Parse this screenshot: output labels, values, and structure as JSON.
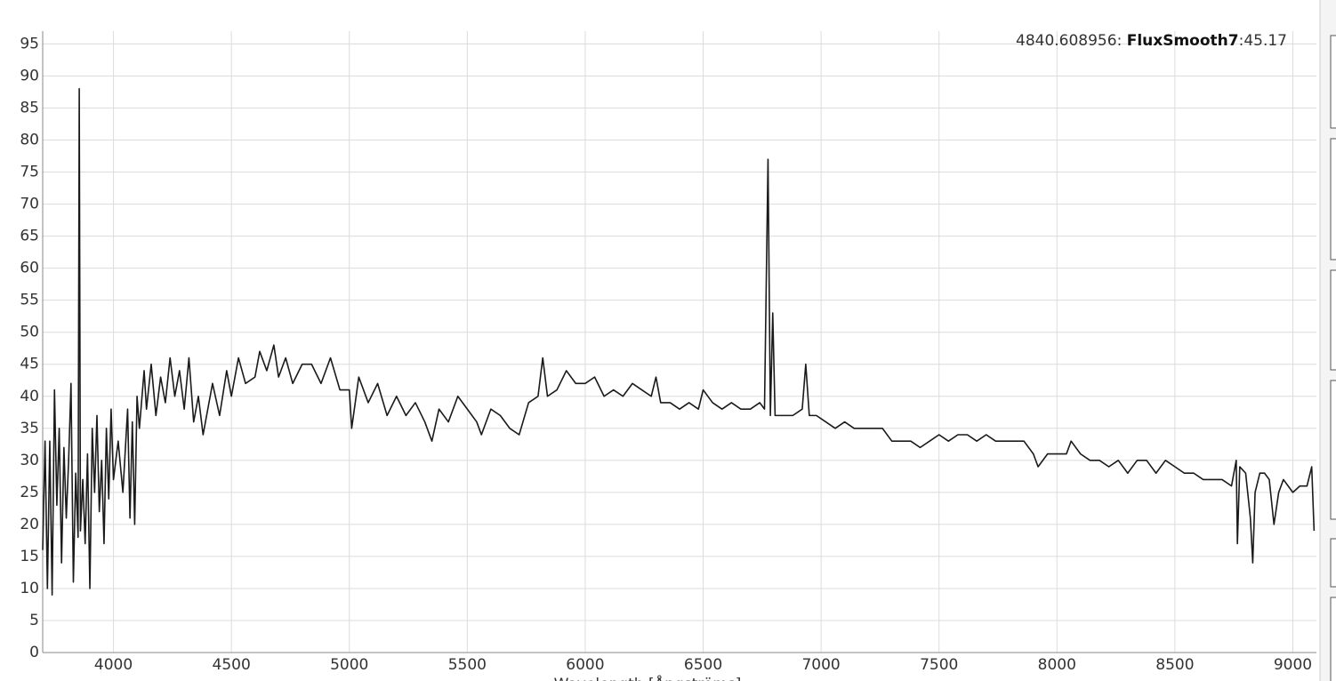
{
  "chart_data": {
    "type": "line",
    "annotation": {
      "x_text": "4840.608956: ",
      "series_name": "FluxSmooth7",
      "value_text": ":45.17"
    },
    "x_label": "Wavelength [Ångströms]",
    "color": "#1a1a1a",
    "grid": true,
    "xlim": [
      3700,
      9100
    ],
    "ylim": [
      0,
      97
    ],
    "xticks": [
      4000,
      4500,
      5000,
      5500,
      6000,
      6500,
      7000,
      7500,
      8000,
      8500,
      9000
    ],
    "yticks": [
      0,
      5,
      10,
      15,
      20,
      25,
      30,
      35,
      40,
      45,
      50,
      55,
      60,
      65,
      70,
      75,
      80,
      85,
      90,
      95
    ],
    "x": [
      3700,
      3710,
      3720,
      3730,
      3740,
      3750,
      3760,
      3770,
      3780,
      3790,
      3800,
      3810,
      3820,
      3830,
      3840,
      3850,
      3855,
      3860,
      3870,
      3880,
      3890,
      3900,
      3910,
      3920,
      3930,
      3940,
      3950,
      3960,
      3970,
      3980,
      3990,
      4000,
      4020,
      4040,
      4060,
      4070,
      4080,
      4090,
      4100,
      4110,
      4130,
      4140,
      4160,
      4180,
      4200,
      4220,
      4240,
      4260,
      4280,
      4300,
      4320,
      4340,
      4360,
      4380,
      4400,
      4420,
      4450,
      4480,
      4500,
      4530,
      4560,
      4600,
      4620,
      4650,
      4680,
      4700,
      4730,
      4760,
      4800,
      4840,
      4880,
      4920,
      4960,
      5000,
      5010,
      5040,
      5080,
      5120,
      5160,
      5200,
      5240,
      5280,
      5320,
      5350,
      5380,
      5420,
      5460,
      5500,
      5540,
      5560,
      5600,
      5640,
      5680,
      5720,
      5760,
      5800,
      5820,
      5840,
      5880,
      5920,
      5960,
      6000,
      6040,
      6080,
      6120,
      6160,
      6200,
      6240,
      6280,
      6300,
      6320,
      6360,
      6400,
      6440,
      6480,
      6500,
      6540,
      6580,
      6620,
      6660,
      6700,
      6740,
      6760,
      6775,
      6785,
      6795,
      6805,
      6840,
      6880,
      6920,
      6935,
      6950,
      6980,
      7020,
      7060,
      7100,
      7140,
      7180,
      7220,
      7260,
      7300,
      7340,
      7380,
      7420,
      7460,
      7500,
      7540,
      7580,
      7620,
      7660,
      7700,
      7740,
      7780,
      7820,
      7860,
      7900,
      7920,
      7960,
      8000,
      8040,
      8060,
      8100,
      8140,
      8180,
      8220,
      8260,
      8300,
      8340,
      8380,
      8420,
      8460,
      8500,
      8540,
      8580,
      8620,
      8660,
      8700,
      8740,
      8760,
      8765,
      8775,
      8800,
      8820,
      8830,
      8840,
      8860,
      8880,
      8900,
      8920,
      8940,
      8960,
      8980,
      9000,
      9030,
      9060,
      9080,
      9090
    ],
    "values": [
      16,
      33,
      10,
      33,
      9,
      41,
      23,
      35,
      14,
      32,
      21,
      30,
      42,
      11,
      28,
      18,
      88,
      19,
      27,
      17,
      31,
      10,
      35,
      25,
      37,
      22,
      30,
      17,
      35,
      24,
      38,
      27,
      33,
      25,
      38,
      21,
      36,
      20,
      40,
      35,
      44,
      38,
      45,
      37,
      43,
      39,
      46,
      40,
      44,
      38,
      46,
      36,
      40,
      34,
      38,
      42,
      37,
      44,
      40,
      46,
      42,
      43,
      47,
      44,
      48,
      43,
      46,
      42,
      45,
      45,
      42,
      46,
      41,
      41,
      35,
      43,
      39,
      42,
      37,
      40,
      37,
      39,
      36,
      33,
      38,
      36,
      40,
      38,
      36,
      34,
      38,
      37,
      35,
      34,
      39,
      40,
      46,
      40,
      41,
      44,
      42,
      42,
      43,
      40,
      41,
      40,
      42,
      41,
      40,
      43,
      39,
      39,
      38,
      39,
      38,
      41,
      39,
      38,
      39,
      38,
      38,
      39,
      38,
      77,
      37,
      53,
      37,
      37,
      37,
      38,
      45,
      37,
      37,
      36,
      35,
      36,
      35,
      35,
      35,
      35,
      33,
      33,
      33,
      32,
      33,
      34,
      33,
      34,
      34,
      33,
      34,
      33,
      33,
      33,
      33,
      31,
      29,
      31,
      31,
      31,
      33,
      31,
      30,
      30,
      29,
      30,
      28,
      30,
      30,
      28,
      30,
      29,
      28,
      28,
      27,
      27,
      27,
      26,
      30,
      17,
      29,
      28,
      21,
      14,
      25,
      28,
      28,
      27,
      20,
      25,
      27,
      26,
      25,
      26,
      26,
      29,
      19
    ]
  }
}
